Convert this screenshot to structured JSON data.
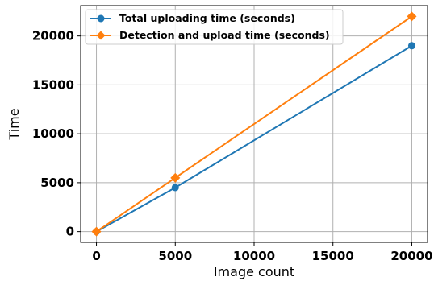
{
  "chart_data": {
    "type": "line",
    "xlabel": "Image count",
    "ylabel": "Time",
    "xlim": [
      -1000,
      21000
    ],
    "ylim": [
      -1100,
      23100
    ],
    "xticks": [
      0,
      5000,
      10000,
      15000,
      20000
    ],
    "yticks": [
      0,
      5000,
      10000,
      15000,
      20000
    ],
    "xtick_labels": [
      "0",
      "5000",
      "10000",
      "15000",
      "20000"
    ],
    "ytick_labels": [
      "0",
      "5000",
      "10000",
      "15000",
      "20000"
    ],
    "grid": true,
    "legend_position": "upper-left",
    "series": [
      {
        "name": "Total uploading time (seconds)",
        "color": "#1f77b4",
        "marker": "circle",
        "points": [
          [
            0,
            0
          ],
          [
            5000,
            4500
          ],
          [
            20000,
            19000
          ]
        ]
      },
      {
        "name": "Detection and upload time (seconds)",
        "color": "#ff7f0e",
        "marker": "diamond",
        "points": [
          [
            0,
            0
          ],
          [
            5000,
            5500
          ],
          [
            20000,
            22000
          ]
        ]
      }
    ]
  }
}
